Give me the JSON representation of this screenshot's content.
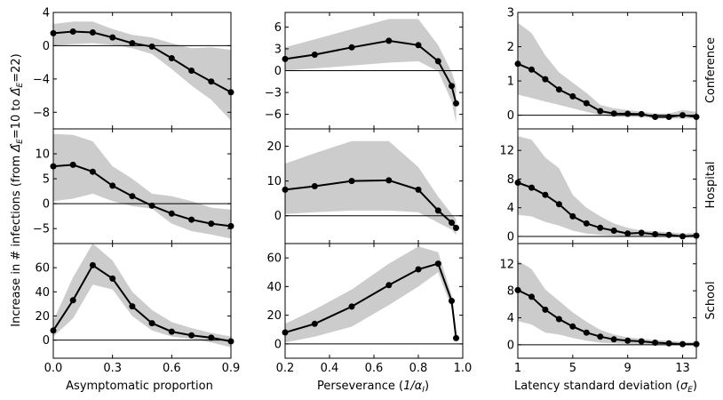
{
  "figure": {
    "ylabel_shared": "Increase in # infections (from Δ̂E=10 to Δ̂E=22)",
    "ylabel_prefix": "Increase in # infections (from ",
    "ylabel_sym": "Δ̂",
    "ylabel_sub1": "E",
    "ylabel_mid": "=10 to ",
    "ylabel_sub2": "E",
    "ylabel_end": "=22)",
    "row_labels": [
      "Conference",
      "Hospital",
      "School"
    ],
    "col_xlabels": [
      {
        "text": "Asymptomatic proportion",
        "math": "",
        "math_sub": ""
      },
      {
        "text": "Perseverance (",
        "math": "1/α",
        "math_sub": "I",
        "end": ")"
      },
      {
        "text": "Latency standard deviation (",
        "math": "σ",
        "math_sub": "E",
        "end": ")"
      }
    ],
    "colors": {
      "line": "#000000",
      "band": "#cccccc",
      "zero": "#000000"
    }
  },
  "chart_data": [
    {
      "type": "line",
      "row": "Conference",
      "col": 0,
      "xlim": [
        0,
        0.9
      ],
      "ylim": [
        -10,
        4
      ],
      "xticks": [
        0,
        0.3,
        0.6,
        0.9
      ],
      "xticklabels": [
        "0.0",
        "0.3",
        "0.6",
        "0.9"
      ],
      "yticks": [
        4,
        0,
        -4,
        -8
      ],
      "yticklabels": [
        "4",
        "0",
        "−4",
        "−8"
      ],
      "x": [
        0,
        0.1,
        0.2,
        0.3,
        0.4,
        0.5,
        0.6,
        0.7,
        0.8,
        0.9
      ],
      "y": [
        1.5,
        1.7,
        1.6,
        1.0,
        0.3,
        -0.1,
        -1.5,
        -3.0,
        -4.3,
        -5.6
      ],
      "lower": [
        0.0,
        0.2,
        0.3,
        0.1,
        -0.3,
        -1.0,
        -2.8,
        -4.8,
        -6.5,
        -9.0
      ],
      "upper": [
        2.6,
        2.9,
        2.9,
        2.0,
        1.3,
        1.0,
        0.3,
        -0.3,
        -0.2,
        -0.5
      ]
    },
    {
      "type": "line",
      "row": "Conference",
      "col": 1,
      "xlim": [
        0.2,
        1.0
      ],
      "ylim": [
        -8,
        8
      ],
      "xticks": [
        0.2,
        0.4,
        0.6,
        0.8,
        1.0
      ],
      "xticklabels": [
        "0.2",
        "0.4",
        "0.6",
        "0.8",
        "1.0"
      ],
      "yticks": [
        6,
        3,
        0,
        -3,
        -6
      ],
      "yticklabels": [
        "6",
        "3",
        "0",
        "−3",
        "−6"
      ],
      "x": [
        0.2,
        0.333,
        0.5,
        0.667,
        0.8,
        0.889,
        0.95,
        0.97
      ],
      "y": [
        1.6,
        2.2,
        3.2,
        4.1,
        3.5,
        1.3,
        -2.1,
        -4.5
      ],
      "lower": [
        0.0,
        0.3,
        0.7,
        1.1,
        1.3,
        -0.1,
        -4.2,
        -7.2
      ],
      "upper": [
        3.2,
        4.3,
        5.7,
        7.1,
        7.1,
        3.5,
        -0.2,
        -2.0
      ]
    },
    {
      "type": "line",
      "row": "Conference",
      "col": 2,
      "xlim": [
        1,
        14
      ],
      "ylim": [
        -0.4,
        3
      ],
      "xticks": [
        1,
        5,
        9,
        13
      ],
      "xticklabels": [
        "1",
        "5",
        "9",
        "13"
      ],
      "yticks": [
        3,
        2,
        1,
        0
      ],
      "yticklabels": [
        "3",
        "2",
        "1",
        "0"
      ],
      "x": [
        1,
        2,
        3,
        4,
        5,
        6,
        7,
        8,
        9,
        10,
        11,
        12,
        13,
        14
      ],
      "y": [
        1.5,
        1.33,
        1.05,
        0.75,
        0.55,
        0.35,
        0.12,
        0.05,
        0.04,
        0.03,
        -0.05,
        -0.05,
        0.0,
        -0.05
      ],
      "lower": [
        0.6,
        0.5,
        0.4,
        0.3,
        0.2,
        0.1,
        0.0,
        -0.05,
        -0.05,
        -0.05,
        -0.1,
        -0.1,
        -0.1,
        -0.1
      ],
      "upper": [
        2.7,
        2.4,
        1.75,
        1.25,
        0.95,
        0.65,
        0.3,
        0.2,
        0.15,
        0.1,
        0.05,
        0.05,
        0.15,
        0.1
      ]
    },
    {
      "type": "line",
      "row": "Hospital",
      "col": 0,
      "xlim": [
        0,
        0.9
      ],
      "ylim": [
        -8,
        15
      ],
      "xticks": [
        0,
        0.3,
        0.6,
        0.9
      ],
      "xticklabels": [
        "0.0",
        "0.3",
        "0.6",
        "0.9"
      ],
      "yticks": [
        10,
        5,
        0,
        -5
      ],
      "yticklabels": [
        "10",
        "5",
        "0",
        "−5"
      ],
      "x": [
        0,
        0.1,
        0.2,
        0.3,
        0.4,
        0.5,
        0.6,
        0.7,
        0.8,
        0.9
      ],
      "y": [
        7.5,
        7.8,
        6.4,
        3.6,
        1.5,
        -0.4,
        -2.0,
        -3.2,
        -4.0,
        -4.5
      ],
      "lower": [
        0.5,
        1.0,
        2.0,
        0.5,
        -0.5,
        -1.0,
        -4.0,
        -5.5,
        -6.2,
        -7.0
      ],
      "upper": [
        14.0,
        13.8,
        12.5,
        7.5,
        5.0,
        2.0,
        1.5,
        0.5,
        -0.8,
        -1.2
      ]
    },
    {
      "type": "line",
      "row": "Hospital",
      "col": 1,
      "xlim": [
        0.2,
        1.0
      ],
      "ylim": [
        -8,
        25
      ],
      "xticks": [
        0.2,
        0.4,
        0.6,
        0.8,
        1.0
      ],
      "xticklabels": [
        "0.2",
        "0.4",
        "0.6",
        "0.8",
        "1.0"
      ],
      "yticks": [
        20,
        10,
        0
      ],
      "yticklabels": [
        "20",
        "10",
        "0"
      ],
      "x": [
        0.2,
        0.333,
        0.5,
        0.667,
        0.8,
        0.889,
        0.95,
        0.97
      ],
      "y": [
        7.5,
        8.5,
        10.0,
        10.2,
        7.5,
        1.5,
        -2.0,
        -3.5
      ],
      "lower": [
        0.5,
        1.0,
        1.5,
        1.5,
        1.0,
        -2.0,
        -4.0,
        -5.5
      ],
      "upper": [
        15.0,
        18.0,
        21.5,
        21.5,
        14.0,
        5.5,
        0.5,
        -1.0
      ]
    },
    {
      "type": "line",
      "row": "Hospital",
      "col": 2,
      "xlim": [
        1,
        14
      ],
      "ylim": [
        -1,
        15
      ],
      "xticks": [
        1,
        5,
        9,
        13
      ],
      "xticklabels": [
        "1",
        "5",
        "9",
        "13"
      ],
      "yticks": [
        12,
        8,
        4,
        0
      ],
      "yticklabels": [
        "12",
        "8",
        "4",
        "0"
      ],
      "x": [
        1,
        2,
        3,
        4,
        5,
        6,
        7,
        8,
        9,
        10,
        11,
        12,
        13,
        14
      ],
      "y": [
        7.5,
        6.8,
        5.8,
        4.5,
        2.8,
        1.8,
        1.2,
        0.8,
        0.4,
        0.5,
        0.3,
        0.2,
        0.0,
        0.1
      ],
      "lower": [
        3.0,
        2.8,
        2.0,
        1.5,
        0.8,
        0.4,
        0.2,
        0.1,
        0.0,
        0.0,
        0.0,
        0.0,
        -0.2,
        -0.2
      ],
      "upper": [
        14.0,
        13.5,
        11.0,
        9.5,
        5.8,
        4.0,
        2.8,
        1.8,
        1.2,
        0.8,
        0.7,
        0.6,
        0.4,
        0.5
      ]
    },
    {
      "type": "line",
      "row": "School",
      "col": 0,
      "xlim": [
        0,
        0.9
      ],
      "ylim": [
        -15,
        80
      ],
      "xticks": [
        0,
        0.3,
        0.6,
        0.9
      ],
      "xticklabels": [
        "0.0",
        "0.3",
        "0.6",
        "0.9"
      ],
      "yticks": [
        60,
        40,
        20,
        0
      ],
      "yticklabels": [
        "60",
        "40",
        "20",
        "0"
      ],
      "x": [
        0,
        0.1,
        0.2,
        0.3,
        0.4,
        0.5,
        0.6,
        0.7,
        0.8,
        0.9
      ],
      "y": [
        8,
        33,
        62,
        51,
        28,
        14,
        7,
        4,
        2,
        -1
      ],
      "lower": [
        3,
        18,
        46,
        42,
        20,
        8,
        3,
        1,
        -2,
        -6
      ],
      "upper": [
        16,
        52,
        80,
        66,
        40,
        25,
        15,
        10,
        6,
        3
      ]
    },
    {
      "type": "line",
      "row": "School",
      "col": 1,
      "xlim": [
        0.2,
        1.0
      ],
      "ylim": [
        -10,
        70
      ],
      "xticks": [
        0.2,
        0.4,
        0.6,
        0.8,
        1.0
      ],
      "xticklabels": [
        "0.2",
        "0.4",
        "0.6",
        "0.8",
        "1.0"
      ],
      "yticks": [
        60,
        40,
        20,
        0
      ],
      "yticklabels": [
        "60",
        "40",
        "20",
        "0"
      ],
      "x": [
        0.2,
        0.333,
        0.5,
        0.667,
        0.8,
        0.889,
        0.95,
        0.97
      ],
      "y": [
        8,
        14,
        26,
        41,
        52,
        56,
        30,
        4
      ],
      "lower": [
        1,
        5,
        12,
        27,
        40,
        50,
        25,
        3
      ],
      "upper": [
        14,
        24,
        38,
        56,
        68,
        64,
        34,
        6
      ]
    },
    {
      "type": "line",
      "row": "School",
      "col": 2,
      "xlim": [
        1,
        14
      ],
      "ylim": [
        -2,
        15
      ],
      "xticks": [
        1,
        5,
        9,
        13
      ],
      "xticklabels": [
        "1",
        "5",
        "9",
        "13"
      ],
      "yticks": [
        12,
        8,
        4,
        0
      ],
      "yticklabels": [
        "12",
        "8",
        "4",
        "0"
      ],
      "x": [
        1,
        2,
        3,
        4,
        5,
        6,
        7,
        8,
        9,
        10,
        11,
        12,
        13,
        14
      ],
      "y": [
        8.1,
        7.1,
        5.2,
        3.8,
        2.7,
        1.8,
        1.2,
        0.8,
        0.6,
        0.5,
        0.3,
        0.2,
        0.1,
        0.1
      ],
      "lower": [
        3.5,
        3.0,
        1.8,
        1.5,
        1.0,
        0.6,
        0.3,
        0.2,
        0.1,
        0.0,
        0.0,
        0.0,
        -0.1,
        -0.1
      ],
      "upper": [
        12.5,
        11.2,
        8.2,
        6.5,
        4.8,
        3.4,
        2.2,
        1.5,
        1.1,
        0.9,
        0.7,
        0.6,
        0.4,
        0.4
      ]
    }
  ]
}
